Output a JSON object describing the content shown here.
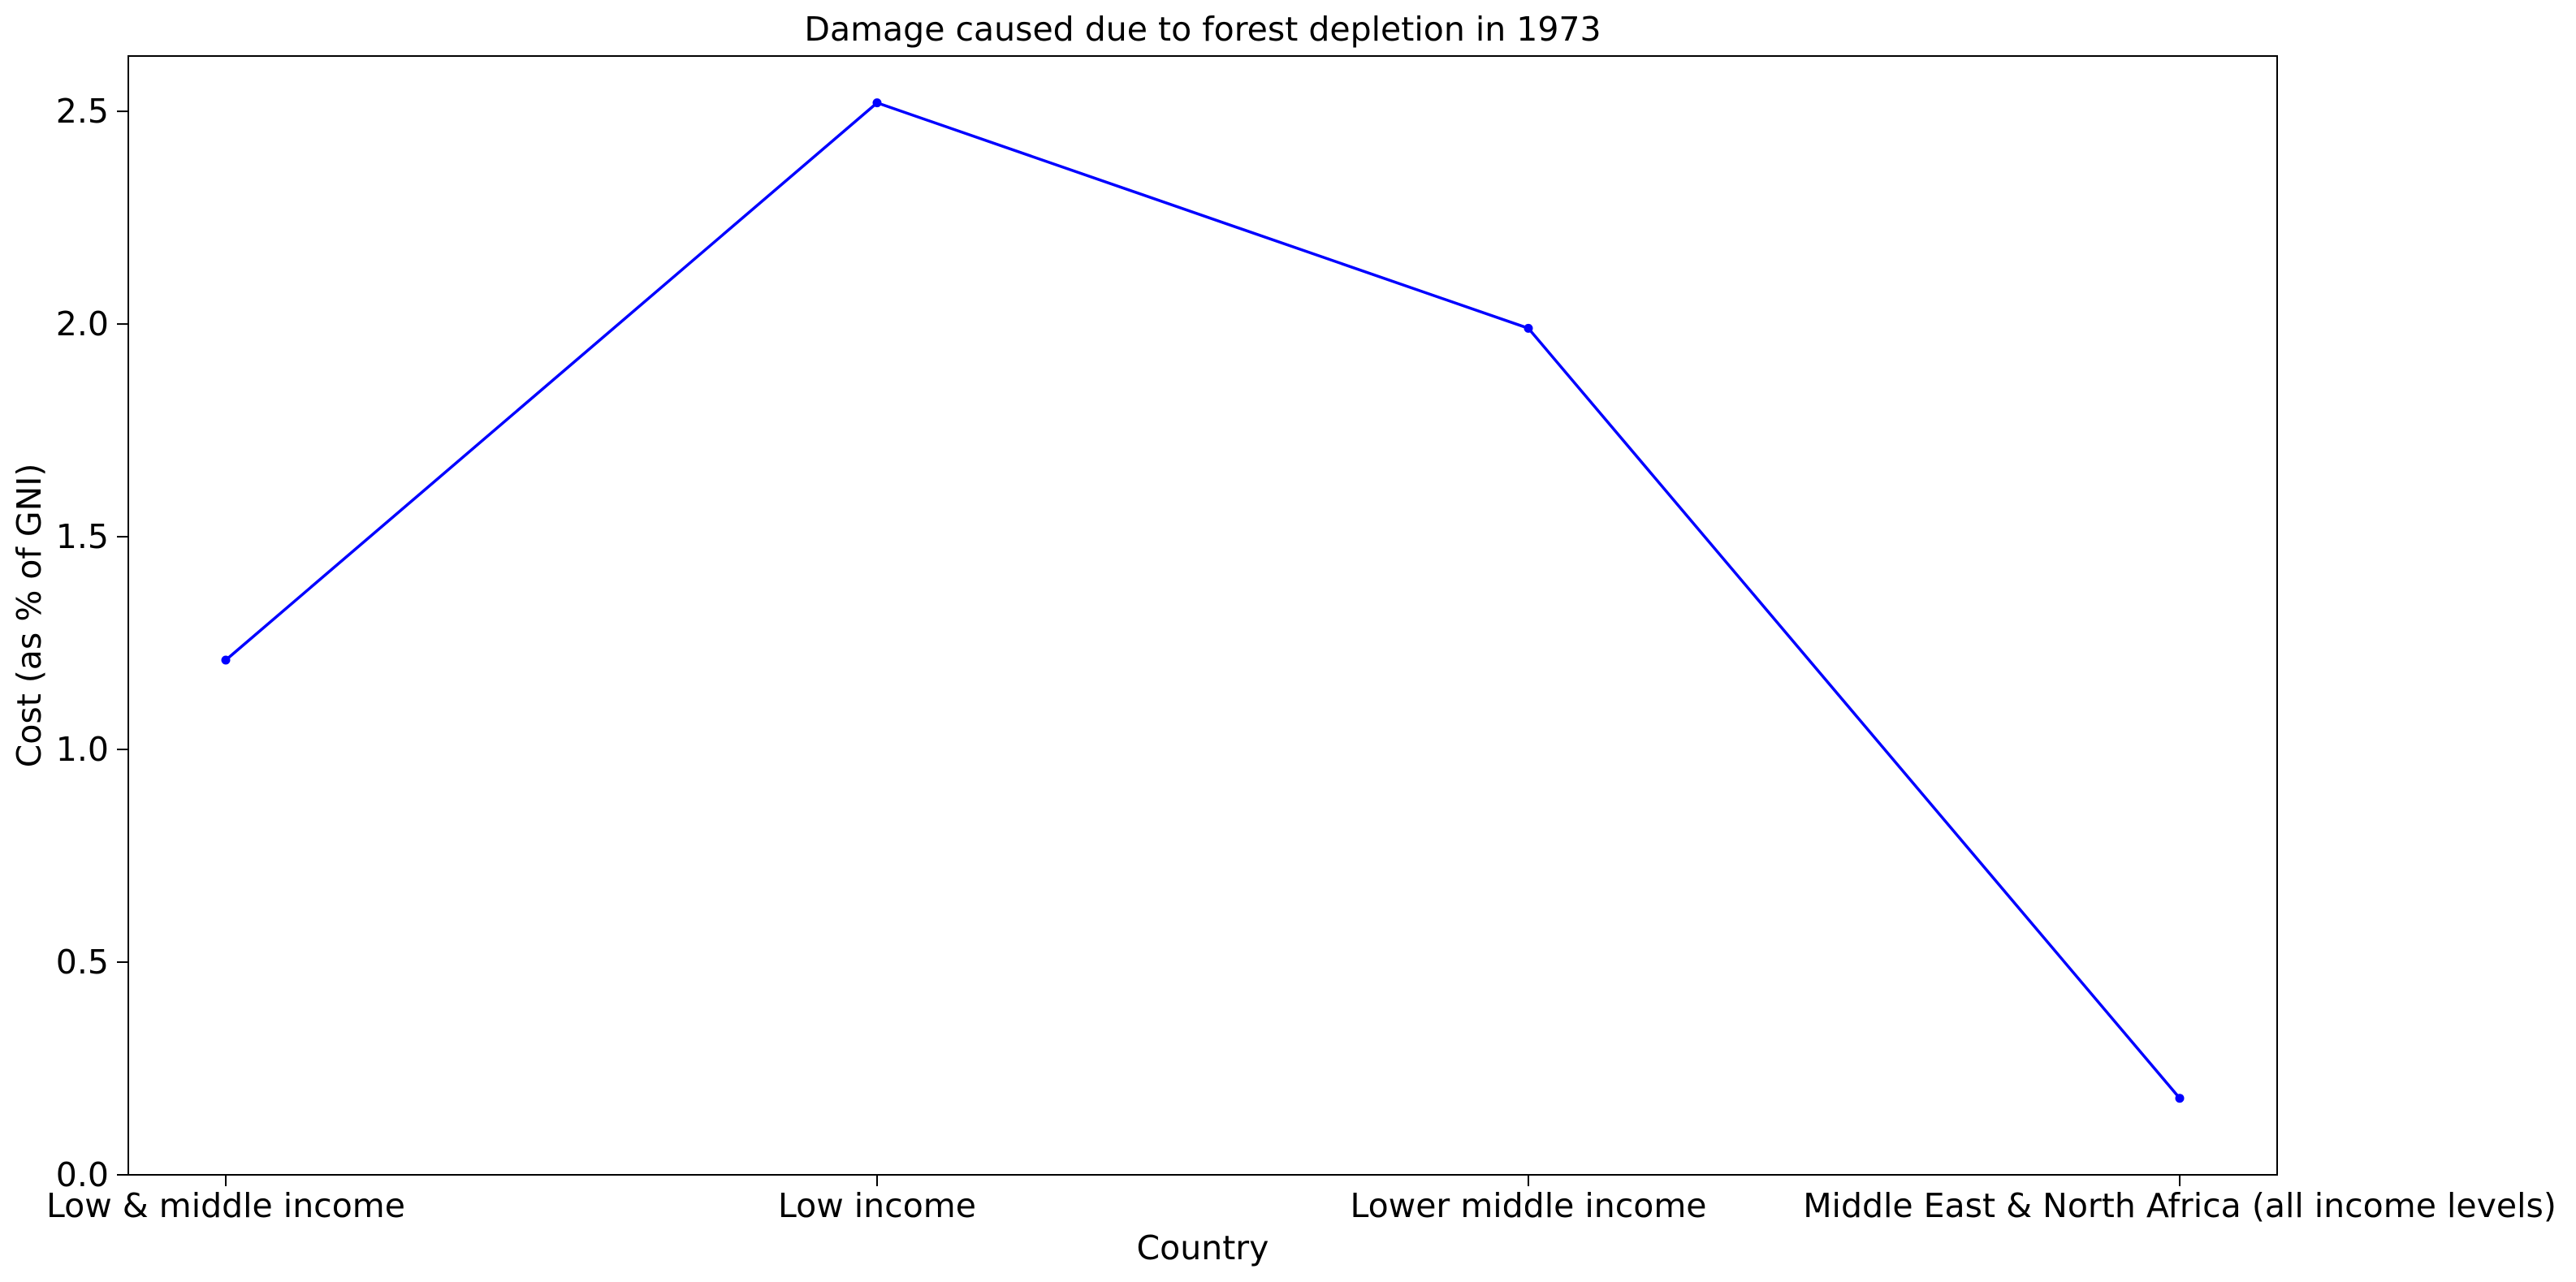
{
  "chart_data": {
    "type": "line",
    "title": "Damage caused due to forest depletion in 1973",
    "xlabel": "Country",
    "ylabel": "Cost (as % of GNI)",
    "categories": [
      "Low & middle income",
      "Low income",
      "Lower middle income",
      "Middle East & North Africa (all income levels)"
    ],
    "series": [
      {
        "values": [
          1.21,
          2.52,
          1.99,
          0.18
        ],
        "color": "#0000ff",
        "marker": "circle"
      }
    ],
    "ylim": [
      0,
      2.63
    ],
    "yticks": [
      "0.0",
      "0.5",
      "1.0",
      "1.5",
      "2.0",
      "2.5"
    ],
    "grid": false,
    "legend": false
  }
}
